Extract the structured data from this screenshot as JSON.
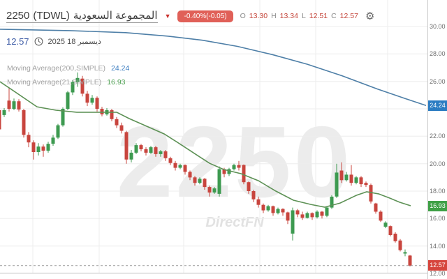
{
  "header": {
    "symbol": "2250",
    "market_code": "(TDWL)",
    "company_name_ar": "المجموعة السعودية",
    "change_badge": "-0.40%(-0.05)",
    "ohlc": {
      "o_label": "O",
      "o_value": "13.30",
      "h_label": "H",
      "h_value": "13.34",
      "l_label": "L",
      "l_value": "12.51",
      "c_label": "C",
      "c_value": "12.57"
    },
    "last_price": "12.57",
    "date_ar": "ديسمبر 18 2025"
  },
  "indicators": [
    {
      "label": "Moving Average(200,SIMPLE)",
      "value": "24.24",
      "color": "#3a7cc0"
    },
    {
      "label": "Moving Average(21,SIMPLE)",
      "value": "16.93",
      "color": "#4b9e4f"
    }
  ],
  "watermark": {
    "symbol": "2250",
    "brand": "DirectFN"
  },
  "axis": {
    "ticks": [
      30,
      28,
      26,
      22,
      20,
      18,
      16,
      14,
      12
    ],
    "badges": [
      {
        "price": 24.24,
        "color": "#2b7cc2"
      },
      {
        "price": 16.93,
        "color": "#3fa046"
      },
      {
        "price": 12.57,
        "color": "#d6453d"
      }
    ]
  },
  "chart_data": {
    "type": "candlestick",
    "title": "2250 (TDWL) المجموعة السعودية",
    "ylim": [
      12,
      30
    ],
    "y_ticks": [
      12,
      14,
      16,
      18,
      20,
      22,
      24,
      26,
      28,
      30
    ],
    "last_price": 12.57,
    "last_candle_ohlc": {
      "open": 13.3,
      "high": 13.34,
      "low": 12.51,
      "close": 12.57
    },
    "up_color": "#3d9a50",
    "down_color": "#c8453e",
    "x_start": -1,
    "x_step": 7,
    "body_width": 5,
    "v_gridlines": [
      47,
      142,
      263,
      372,
      452,
      555
    ],
    "candles": [
      [
        23.9,
        24.0,
        22.4,
        22.5
      ],
      [
        23.55,
        24.05,
        23.4,
        23.9
      ],
      [
        24.6,
        25.5,
        23.8,
        24.0
      ],
      [
        24.0,
        24.75,
        23.9,
        24.55
      ],
      [
        24.55,
        24.7,
        23.8,
        23.95
      ],
      [
        23.9,
        24.0,
        21.9,
        22.1
      ],
      [
        22.1,
        22.3,
        21.2,
        21.55
      ],
      [
        21.55,
        21.7,
        20.3,
        20.85
      ],
      [
        20.85,
        21.5,
        20.6,
        21.25
      ],
      [
        21.25,
        21.4,
        20.5,
        20.95
      ],
      [
        20.95,
        21.6,
        20.8,
        21.45
      ],
      [
        21.45,
        22.1,
        21.3,
        21.9
      ],
      [
        21.9,
        22.9,
        21.8,
        22.8
      ],
      [
        22.8,
        24.1,
        22.7,
        24.0
      ],
      [
        24.0,
        25.3,
        23.9,
        25.2
      ],
      [
        25.2,
        26.1,
        25.0,
        25.95
      ],
      [
        25.95,
        26.65,
        25.6,
        26.25
      ],
      [
        26.2,
        26.4,
        24.9,
        25.1
      ],
      [
        25.1,
        25.3,
        24.2,
        24.45
      ],
      [
        24.45,
        25.0,
        24.3,
        24.8
      ],
      [
        24.8,
        24.9,
        23.8,
        24.0
      ],
      [
        24.0,
        24.15,
        23.45,
        23.6
      ],
      [
        23.6,
        24.05,
        23.5,
        23.9
      ],
      [
        23.9,
        24.0,
        23.1,
        23.25
      ],
      [
        23.25,
        23.4,
        22.6,
        22.8
      ],
      [
        22.8,
        23.0,
        22.2,
        22.4
      ],
      [
        22.3,
        22.4,
        20.0,
        20.3
      ],
      [
        20.3,
        21.0,
        20.1,
        20.8
      ],
      [
        20.8,
        21.5,
        20.7,
        21.35
      ],
      [
        21.35,
        21.45,
        20.9,
        21.05
      ],
      [
        21.05,
        21.2,
        20.6,
        20.8
      ],
      [
        20.8,
        21.3,
        20.7,
        21.2
      ],
      [
        21.2,
        21.3,
        20.5,
        20.7
      ],
      [
        20.7,
        21.0,
        20.5,
        20.9
      ],
      [
        20.9,
        21.0,
        20.2,
        20.4
      ],
      [
        20.4,
        20.5,
        19.9,
        20.05
      ],
      [
        20.05,
        20.2,
        19.5,
        19.7
      ],
      [
        19.7,
        20.0,
        19.6,
        19.9
      ],
      [
        19.9,
        19.95,
        19.2,
        19.4
      ],
      [
        19.4,
        19.5,
        18.8,
        19.0
      ],
      [
        19.0,
        19.1,
        18.4,
        18.6
      ],
      [
        18.6,
        19.0,
        18.5,
        18.9
      ],
      [
        18.9,
        18.95,
        18.1,
        18.3
      ],
      [
        18.3,
        18.4,
        17.6,
        17.9
      ],
      [
        17.9,
        18.3,
        17.8,
        18.2
      ],
      [
        17.8,
        19.8,
        17.6,
        19.6
      ],
      [
        19.6,
        19.7,
        19.0,
        19.25
      ],
      [
        19.25,
        19.7,
        19.1,
        19.6
      ],
      [
        19.6,
        20.0,
        19.5,
        19.9
      ],
      [
        19.9,
        20.2,
        19.5,
        19.7
      ],
      [
        19.9,
        19.95,
        18.5,
        18.65
      ],
      [
        18.65,
        18.7,
        17.8,
        18.0
      ],
      [
        18.0,
        18.1,
        17.2,
        17.4
      ],
      [
        17.4,
        17.6,
        16.8,
        17.0
      ],
      [
        17.0,
        17.1,
        16.4,
        16.6
      ],
      [
        16.6,
        17.0,
        16.5,
        16.9
      ],
      [
        16.9,
        16.95,
        16.2,
        16.4
      ],
      [
        16.4,
        16.8,
        16.3,
        16.7
      ],
      [
        16.7,
        16.75,
        16.2,
        16.45
      ],
      [
        16.45,
        16.5,
        15.6,
        15.85
      ],
      [
        14.9,
        16.8,
        14.4,
        16.6
      ],
      [
        16.6,
        16.7,
        16.1,
        16.3
      ],
      [
        16.3,
        16.5,
        15.9,
        16.05
      ],
      [
        16.05,
        16.5,
        16.0,
        16.4
      ],
      [
        16.4,
        16.45,
        15.9,
        16.1
      ],
      [
        16.1,
        16.6,
        16.0,
        16.5
      ],
      [
        16.5,
        16.55,
        16.0,
        16.2
      ],
      [
        16.2,
        16.9,
        16.1,
        16.8
      ],
      [
        16.8,
        17.7,
        16.7,
        17.6
      ],
      [
        17.6,
        20.0,
        17.5,
        19.35
      ],
      [
        19.5,
        20.1,
        18.6,
        18.8
      ],
      [
        18.8,
        19.4,
        18.7,
        19.2
      ],
      [
        19.2,
        19.9,
        18.4,
        18.6
      ],
      [
        18.6,
        19.1,
        18.5,
        19.0
      ],
      [
        19.0,
        19.1,
        18.3,
        18.5
      ],
      [
        18.6,
        18.7,
        18.3,
        18.45
      ],
      [
        18.45,
        18.55,
        17.1,
        17.25
      ],
      [
        17.1,
        17.15,
        16.35,
        16.5
      ],
      [
        16.5,
        16.6,
        15.75,
        15.85
      ],
      [
        15.4,
        15.8,
        15.3,
        15.7
      ],
      [
        15.45,
        15.5,
        14.7,
        14.8
      ],
      [
        14.9,
        15.0,
        14.25,
        14.35
      ],
      [
        14.4,
        14.5,
        13.6,
        13.7
      ],
      [
        13.45,
        13.75,
        13.25,
        13.55
      ],
      [
        13.3,
        13.34,
        12.51,
        12.57
      ]
    ],
    "overlays": [
      {
        "name": "Moving Average(200,SIMPLE)",
        "color": "#4e7fa7",
        "value": 24.24,
        "points": [
          [
            0,
            29.8
          ],
          [
            100,
            29.7
          ],
          [
            180,
            29.55
          ],
          [
            240,
            29.3
          ],
          [
            290,
            29.0
          ],
          [
            340,
            28.55
          ],
          [
            390,
            27.95
          ],
          [
            440,
            27.25
          ],
          [
            490,
            26.4
          ],
          [
            540,
            25.45
          ],
          [
            580,
            24.75
          ],
          [
            610,
            24.24
          ]
        ]
      },
      {
        "name": "Moving Average(21,SIMPLE)",
        "color": "#5d9155",
        "value": 16.93,
        "points": [
          [
            0,
            25.98
          ],
          [
            53,
            24.15
          ],
          [
            80,
            23.9
          ],
          [
            110,
            23.75
          ],
          [
            167,
            23.75
          ],
          [
            185,
            23.29
          ],
          [
            210,
            22.73
          ],
          [
            235,
            22.17
          ],
          [
            260,
            21.36
          ],
          [
            280,
            20.69
          ],
          [
            300,
            20.03
          ],
          [
            320,
            19.58
          ],
          [
            345,
            19.27
          ],
          [
            370,
            18.76
          ],
          [
            395,
            18.0
          ],
          [
            420,
            17.34
          ],
          [
            445,
            17.03
          ],
          [
            465,
            16.83
          ],
          [
            487,
            17.13
          ],
          [
            510,
            17.69
          ],
          [
            525,
            17.95
          ],
          [
            542,
            17.8
          ],
          [
            558,
            17.49
          ],
          [
            572,
            17.19
          ],
          [
            588,
            16.93
          ]
        ]
      }
    ]
  }
}
